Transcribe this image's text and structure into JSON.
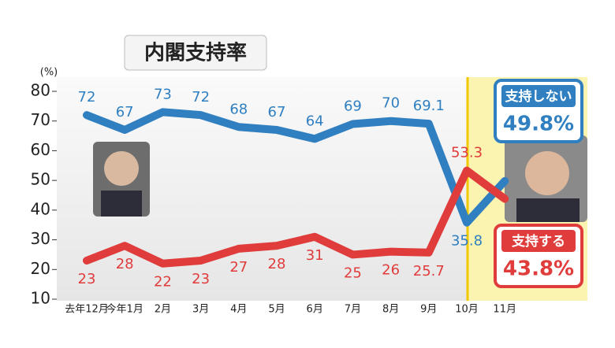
{
  "chart_data": {
    "type": "line",
    "title": "内閣支持率",
    "y_unit": "(%)",
    "categories": [
      "去年12月",
      "今年1月",
      "2月",
      "3月",
      "4月",
      "5月",
      "6月",
      "7月",
      "8月",
      "9月",
      "10月",
      "11月"
    ],
    "series": [
      {
        "name": "支持しない",
        "color": "#2f7fc1",
        "values": [
          72,
          67,
          73,
          72,
          68,
          67,
          64,
          69,
          70,
          69.1,
          35.8,
          49.8
        ],
        "value_labels": [
          "72",
          "67",
          "73",
          "72",
          "68",
          "67",
          "64",
          "69",
          "70",
          "69.1",
          "35.8",
          "49.8%"
        ]
      },
      {
        "name": "支持する",
        "color": "#e03c3c",
        "values": [
          23,
          28,
          22,
          23,
          27,
          28,
          31,
          25,
          26,
          25.7,
          53.3,
          43.8
        ],
        "value_labels": [
          "23",
          "28",
          "22",
          "23",
          "27",
          "28",
          "31",
          "25",
          "26",
          "25.7",
          "53.3",
          "43.8%"
        ]
      }
    ],
    "ylim": [
      10,
      80
    ],
    "yticks": [
      10,
      20,
      30,
      40,
      50,
      60,
      70,
      80
    ]
  }
}
